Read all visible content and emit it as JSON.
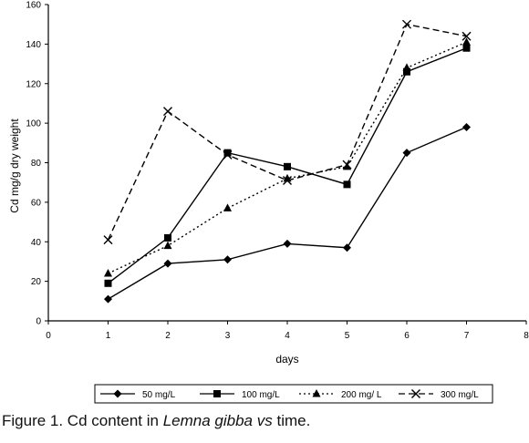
{
  "chart_data": {
    "type": "line",
    "xlabel": "days",
    "ylabel": "Cd mg/g dry weight",
    "xlim": [
      0,
      8
    ],
    "ylim": [
      0,
      160
    ],
    "x_ticks": [
      "0",
      "1",
      "2",
      "3",
      "4",
      "5",
      "6",
      "7",
      "8"
    ],
    "y_ticks": [
      "0",
      "20",
      "40",
      "60",
      "80",
      "100",
      "120",
      "140",
      "160"
    ],
    "grid": false,
    "legend_position": "bottom",
    "x": [
      1,
      2,
      3,
      4,
      5,
      6,
      7
    ],
    "series": [
      {
        "name": "50 mg/L",
        "marker": "diamond",
        "line": "solid",
        "values": [
          11,
          29,
          31,
          39,
          37,
          85,
          98
        ]
      },
      {
        "name": "100 mg/L",
        "marker": "square",
        "line": "solid",
        "values": [
          19,
          42,
          85,
          78,
          69,
          126,
          138
        ]
      },
      {
        "name": "200 mg/ L",
        "marker": "triangle",
        "line": "dotted",
        "values": [
          24,
          38,
          57,
          72,
          78,
          128,
          141
        ]
      },
      {
        "name": "300 mg/L",
        "marker": "x",
        "line": "dashed",
        "values": [
          41,
          106,
          84,
          71,
          79,
          150,
          144
        ]
      }
    ]
  },
  "caption": {
    "prefix": "Figure 1. Cd content in ",
    "species": "Lemna gibba",
    "vs": "vs",
    "suffix": " time."
  }
}
